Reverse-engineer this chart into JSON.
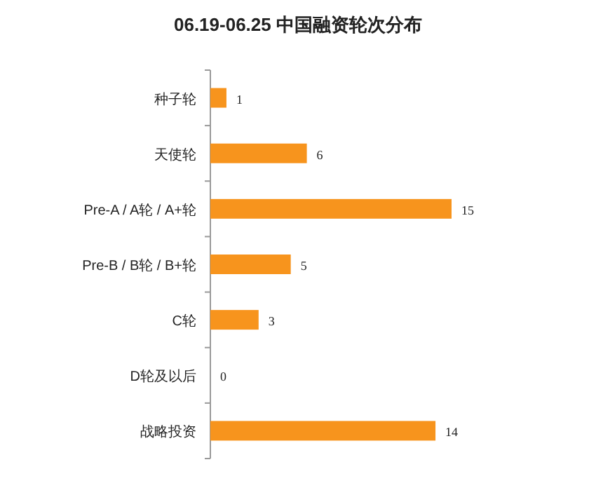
{
  "chart_data": {
    "type": "bar",
    "orientation": "horizontal",
    "title": "06.19-06.25 中国融资轮次分布",
    "categories": [
      "种子轮",
      "天使轮",
      "Pre-A / A轮 / A+轮",
      "Pre-B / B轮 / B+轮",
      "C轮",
      "D轮及以后",
      "战略投资"
    ],
    "values": [
      1,
      6,
      15,
      5,
      3,
      0,
      14
    ],
    "color": "#f7941d",
    "data_labels": true
  }
}
